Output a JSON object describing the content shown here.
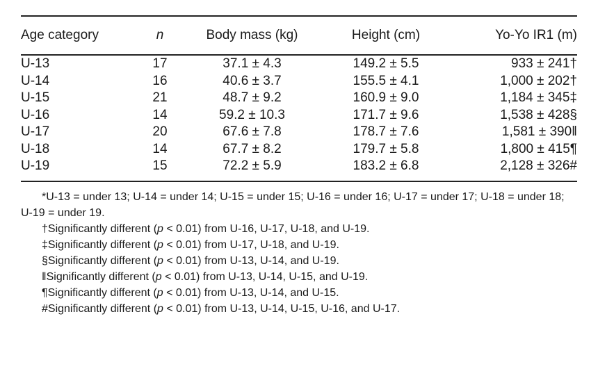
{
  "table": {
    "headers": {
      "age": "Age category",
      "n": "n",
      "mass": "Body mass (kg)",
      "height": "Height (cm)",
      "yoyo": "Yo-Yo IR1 (m)"
    },
    "rows": [
      {
        "age": "U-13",
        "n": "17",
        "mass": "37.1 ± 4.3",
        "height": "149.2 ± 5.5",
        "yoyo": "933 ± 241†"
      },
      {
        "age": "U-14",
        "n": "16",
        "mass": "40.6 ± 3.7",
        "height": "155.5 ± 4.1",
        "yoyo": "1,000 ± 202†"
      },
      {
        "age": "U-15",
        "n": "21",
        "mass": "48.7 ± 9.2",
        "height": "160.9 ± 9.0",
        "yoyo": "1,184 ± 345‡"
      },
      {
        "age": "U-16",
        "n": "14",
        "mass": "59.2 ± 10.3",
        "height": "171.7 ± 9.6",
        "yoyo": "1,538 ± 428§"
      },
      {
        "age": "U-17",
        "n": "20",
        "mass": "67.6 ± 7.8",
        "height": "178.7 ± 7.6",
        "yoyo": "1,581 ± 390‖"
      },
      {
        "age": "U-18",
        "n": "14",
        "mass": "67.7 ± 8.2",
        "height": "179.7 ± 5.8",
        "yoyo": "1,800 ± 415¶"
      },
      {
        "age": "U-19",
        "n": "15",
        "mass": "72.2 ± 5.9",
        "height": "183.2 ± 6.8",
        "yoyo": "2,128 ± 326#"
      }
    ]
  },
  "notes": {
    "abbrev": "*U-13 = under 13; U-14 = under 14; U-15 = under 15; U-16 = under 16; U-17 = under 17; U-18 = under 18; U-19 = under 19.",
    "dagger": "†Significantly different (p < 0.01) from U-16, U-17, U-18, and U-19.",
    "double_dagger": "‡Significantly different (p < 0.01) from U-17, U-18, and U-19.",
    "section": "§Significantly different (p < 0.01) from U-13, U-14, and U-19.",
    "parallel": "‖Significantly different (p < 0.01) from U-13, U-14, U-15, and U-19.",
    "pilcrow": "¶Significantly different (p < 0.01) from U-13, U-14, and U-15.",
    "hash": "#Significantly different (p < 0.01) from U-13, U-14, U-15, U-16, and U-17."
  }
}
